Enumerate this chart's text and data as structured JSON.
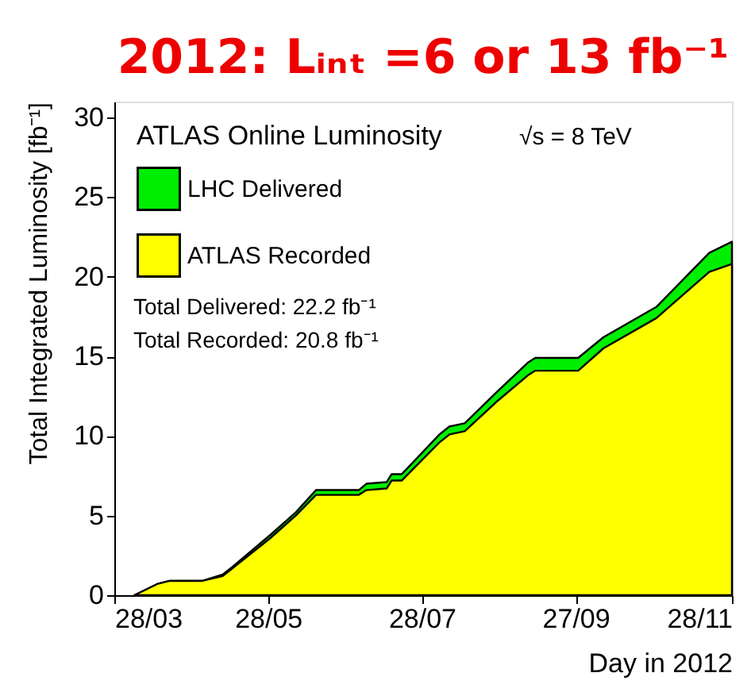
{
  "chart_data": {
    "type": "area",
    "title": "2012: Lᵢₙₜ =6 or 13 fb⁻¹",
    "xlabel": "Day in 2012",
    "ylabel": "Total Integrated Luminosity [fb⁻¹]",
    "legend_title": "ATLAS Online Luminosity",
    "x": [
      "2012-04-05",
      "2012-04-14",
      "2012-04-19",
      "2012-05-02",
      "2012-05-10",
      "2012-05-14",
      "2012-05-29",
      "2012-06-08",
      "2012-06-16",
      "2012-07-03",
      "2012-07-06",
      "2012-07-14",
      "2012-07-16",
      "2012-07-20",
      "2012-08-04",
      "2012-08-08",
      "2012-08-14",
      "2012-08-27",
      "2012-09-08",
      "2012-09-11",
      "2012-09-28",
      "2012-10-08",
      "2012-10-29",
      "2012-11-19",
      "2012-11-28"
    ],
    "series": [
      {
        "name": "LHC Delivered",
        "color": "#00ee00",
        "values": [
          0,
          0.7,
          0.9,
          0.9,
          1.3,
          1.8,
          3.8,
          5.2,
          6.6,
          6.6,
          7.0,
          7.1,
          7.6,
          7.6,
          10.1,
          10.6,
          10.8,
          12.8,
          14.6,
          14.9,
          14.9,
          16.2,
          18.1,
          21.5,
          22.2
        ]
      },
      {
        "name": "ATLAS Recorded",
        "color": "#ffff00",
        "values": [
          0,
          0.7,
          0.9,
          0.9,
          1.2,
          1.7,
          3.6,
          5.0,
          6.3,
          6.3,
          6.6,
          6.7,
          7.2,
          7.2,
          9.6,
          10.1,
          10.3,
          12.2,
          13.8,
          14.1,
          14.1,
          15.5,
          17.4,
          20.3,
          20.8
        ]
      }
    ],
    "xlim": [
      "2012-03-28",
      "2012-11-28"
    ],
    "xticks": [
      {
        "value": "2012-03-28",
        "label": "28/03"
      },
      {
        "value": "2012-05-28",
        "label": "28/05"
      },
      {
        "value": "2012-07-28",
        "label": "28/07"
      },
      {
        "value": "2012-09-27",
        "label": "27/09"
      },
      {
        "value": "2012-11-28",
        "label": "28/11"
      }
    ],
    "ylim": [
      0,
      31
    ],
    "yticks": [
      0,
      5,
      10,
      15,
      20,
      25,
      30
    ],
    "grid": false,
    "legend": "top left",
    "annotations": [
      "√s = 8 TeV",
      "Total Delivered: 22.2 fb⁻¹",
      "Total Recorded: 20.8 fb⁻¹"
    ]
  }
}
